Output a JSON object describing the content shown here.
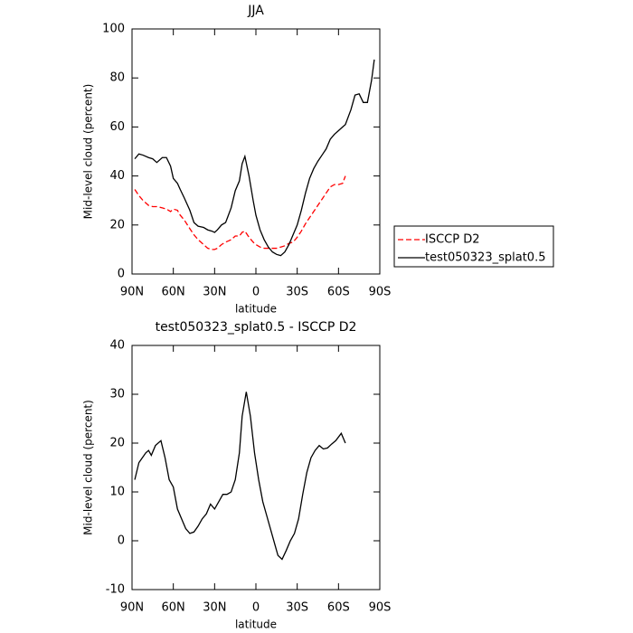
{
  "chart_data": [
    {
      "type": "line",
      "title": "JJA",
      "xlabel": "latitude",
      "ylabel": "Mid-level cloud (percent)",
      "xlim": [
        90,
        -90
      ],
      "ylim": [
        0,
        100
      ],
      "xticks": [
        {
          "value": 90,
          "label": "90N"
        },
        {
          "value": 60,
          "label": "60N"
        },
        {
          "value": 30,
          "label": "30N"
        },
        0,
        {
          "value": -30,
          "label": "30S"
        },
        {
          "value": -60,
          "label": "60S"
        },
        {
          "value": -90,
          "label": "90S"
        }
      ],
      "yticks": [
        0,
        20,
        40,
        60,
        80,
        100
      ],
      "legend": "right",
      "x": [
        88,
        85,
        82,
        78,
        75,
        72,
        68,
        65,
        62,
        60,
        57,
        55,
        52,
        48,
        45,
        42,
        38,
        35,
        32,
        30,
        28,
        25,
        22,
        20,
        18,
        15,
        12,
        10,
        8,
        5,
        2,
        0,
        -3,
        -6,
        -9,
        -12,
        -15,
        -18,
        -21,
        -24,
        -27,
        -30,
        -33,
        -36,
        -39,
        -42,
        -45,
        -48,
        -51,
        -54,
        -57,
        -60,
        -63,
        -65,
        -69,
        -72,
        -75,
        -78,
        -81,
        -84,
        -86
      ],
      "series": [
        {
          "name": "ISCCP D2",
          "color": "#ff0000",
          "linestyle": "dashed",
          "values": [
            34.5,
            32,
            30,
            28,
            27.5,
            27.5,
            27,
            26.5,
            25.5,
            26.5,
            26,
            24,
            22,
            18.5,
            16,
            14,
            12,
            10.5,
            10,
            10,
            10.5,
            12,
            13,
            13.5,
            14,
            15.5,
            15.5,
            17,
            17.5,
            15,
            13,
            12,
            11,
            10.5,
            10.5,
            10.5,
            10.5,
            11,
            11.5,
            12.5,
            13,
            15,
            17.5,
            20.5,
            23,
            25.5,
            28,
            30.5,
            33,
            35.5,
            36.5,
            36.5,
            37,
            40,
            null,
            null,
            null,
            null,
            null,
            null,
            null
          ]
        },
        {
          "name": "test050323_splat0.5",
          "color": "#000000",
          "linestyle": "solid",
          "values": [
            47,
            49,
            48.5,
            47.5,
            47,
            45.5,
            47.5,
            47.5,
            44,
            39,
            37,
            34.5,
            31,
            26,
            21,
            19.5,
            19,
            18,
            17.5,
            17,
            18,
            20,
            21,
            24,
            27,
            34,
            38,
            45,
            48,
            40,
            30,
            24,
            18,
            14,
            11,
            9,
            8,
            7.5,
            9,
            12,
            16,
            20,
            26,
            33,
            39,
            43,
            46,
            48.5,
            51,
            55,
            57,
            58.5,
            60,
            61,
            67,
            73,
            73.5,
            70,
            70,
            79,
            87.5
          ]
        }
      ]
    },
    {
      "type": "line",
      "title": "test050323_splat0.5 - ISCCP D2",
      "xlabel": "latitude",
      "ylabel": "Mid-level cloud (percent)",
      "xlim": [
        90,
        -90
      ],
      "ylim": [
        -10,
        40
      ],
      "xticks": [
        {
          "value": 90,
          "label": "90N"
        },
        {
          "value": 60,
          "label": "60N"
        },
        {
          "value": 30,
          "label": "30N"
        },
        0,
        {
          "value": -30,
          "label": "30S"
        },
        {
          "value": -60,
          "label": "60S"
        },
        {
          "value": -90,
          "label": "90S"
        }
      ],
      "yticks": [
        -10,
        0,
        10,
        20,
        30,
        40
      ],
      "color": "#000000",
      "x": [
        88,
        85,
        80,
        78,
        76,
        73,
        69,
        66,
        63,
        60,
        57,
        54,
        51,
        48,
        45,
        42,
        39,
        36,
        33,
        30,
        27,
        24,
        21,
        18,
        15,
        12,
        10,
        7,
        4,
        1,
        -2,
        -5,
        -8,
        -11,
        -14,
        -16,
        -19,
        -22,
        -25,
        -28,
        -31,
        -34,
        -37,
        -40,
        -43,
        -46,
        -49,
        -52,
        -55,
        -58,
        -62,
        -65
      ],
      "values": [
        12.5,
        16,
        18,
        18.5,
        17.5,
        19.5,
        20.5,
        17,
        12.5,
        11,
        6.5,
        4.5,
        2.5,
        1.5,
        1.8,
        3,
        4.5,
        5.5,
        7.5,
        6.5,
        8,
        9.5,
        9.5,
        10,
        12.5,
        18,
        25.5,
        30.5,
        25.5,
        18,
        12.5,
        8,
        5,
        2,
        -1,
        -3,
        -3.8,
        -2,
        0,
        1.5,
        4.5,
        9.5,
        14,
        17,
        18.5,
        19.5,
        18.8,
        19,
        19.8,
        20.5,
        22,
        20
      ]
    }
  ]
}
